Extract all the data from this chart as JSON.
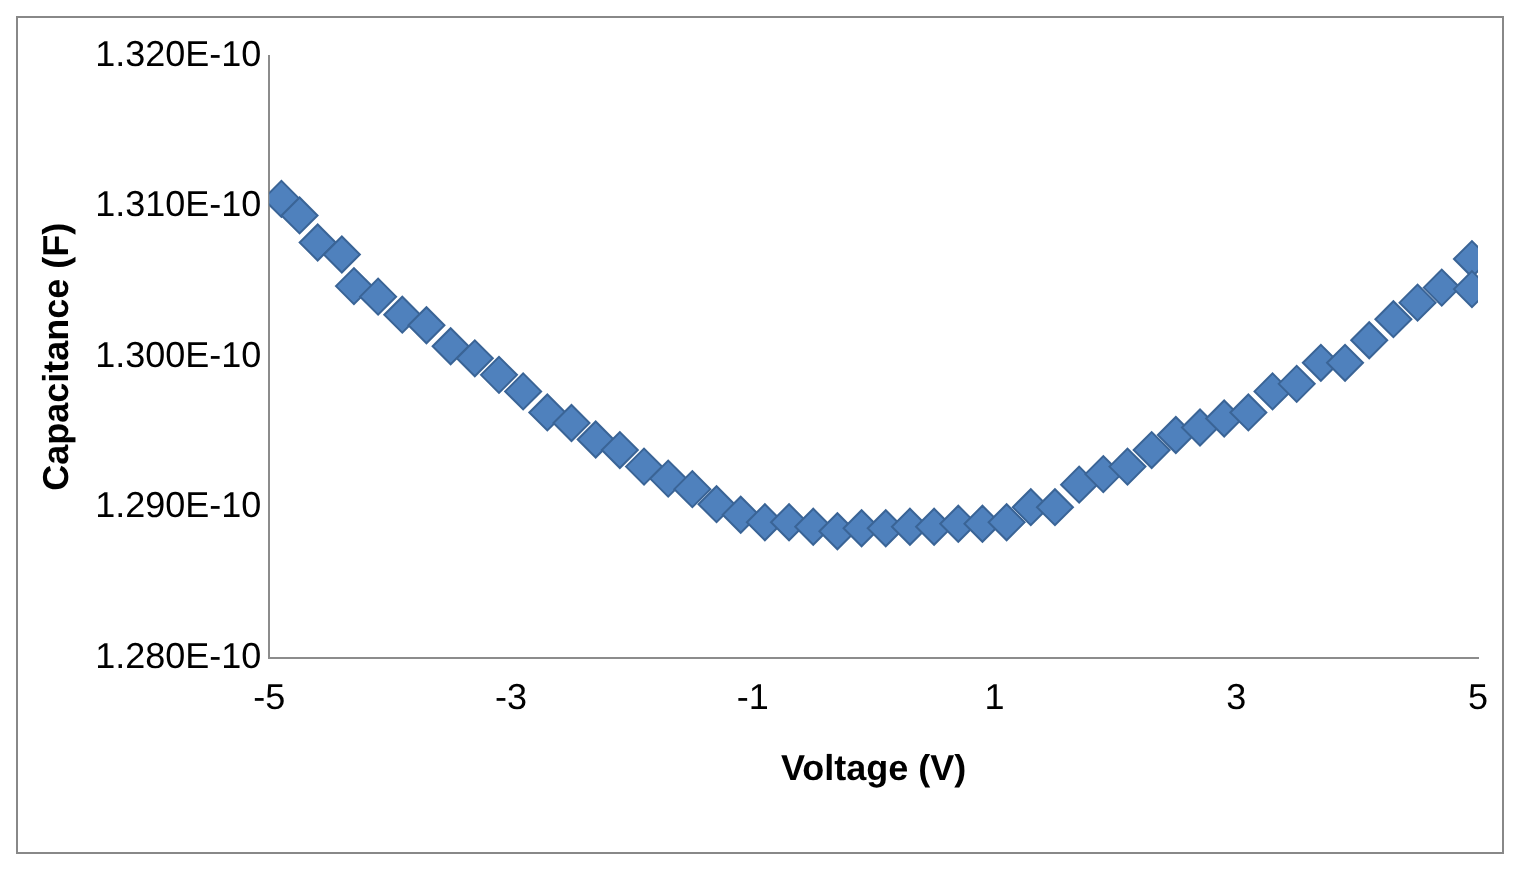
{
  "chart_data": {
    "type": "scatter",
    "xlabel": "Voltage (V)",
    "ylabel": "Capacitance (F)",
    "marker": "diamond",
    "grid": false,
    "xlim": [
      -5,
      5
    ],
    "xticks": [
      -5,
      -3,
      -1,
      1,
      3,
      5
    ],
    "ylim": [
      1.28e-10,
      1.32e-10
    ],
    "yticks": [
      {
        "value": 1.28e-10,
        "label": "1.280E-10"
      },
      {
        "value": 1.29e-10,
        "label": "1.290E-10"
      },
      {
        "value": 1.3e-10,
        "label": "1.300E-10"
      },
      {
        "value": 1.31e-10,
        "label": "1.310E-10"
      },
      {
        "value": 1.32e-10,
        "label": "1.320E-10"
      }
    ],
    "series": [
      {
        "color": "#4f81bd",
        "x": [
          -4.9,
          -4.75,
          -4.6,
          -4.4,
          -4.3,
          -4.1,
          -3.9,
          -3.7,
          -3.5,
          -3.3,
          -3.1,
          -2.9,
          -2.7,
          -2.5,
          -2.3,
          -2.1,
          -1.9,
          -1.7,
          -1.5,
          -1.3,
          -1.1,
          -0.9,
          -0.7,
          -0.5,
          -0.3,
          -0.1,
          0.1,
          0.3,
          0.5,
          0.7,
          0.9,
          1.1,
          1.3,
          1.5,
          1.7,
          1.9,
          2.1,
          2.3,
          2.5,
          2.7,
          2.9,
          3.1,
          3.3,
          3.5,
          3.7,
          3.9,
          4.1,
          4.3,
          4.5,
          4.7,
          4.95,
          4.95
        ],
        "values": [
          1.3105e-10,
          1.3094e-10,
          1.3076e-10,
          1.3068e-10,
          1.3047e-10,
          1.304e-10,
          1.3028e-10,
          1.3021e-10,
          1.3007e-10,
          1.2999e-10,
          1.2988e-10,
          1.2977e-10,
          1.2963e-10,
          1.2956e-10,
          1.2945e-10,
          1.2938e-10,
          1.2927e-10,
          1.2919e-10,
          1.2912e-10,
          1.2902e-10,
          1.2895e-10,
          1.289e-10,
          1.289e-10,
          1.2887e-10,
          1.2884e-10,
          1.2886e-10,
          1.2886e-10,
          1.2887e-10,
          1.2887e-10,
          1.2889e-10,
          1.2889e-10,
          1.289e-10,
          1.29e-10,
          1.29e-10,
          1.2915e-10,
          1.2922e-10,
          1.2927e-10,
          1.2938e-10,
          1.2948e-10,
          1.2953e-10,
          1.2959e-10,
          1.2963e-10,
          1.2977e-10,
          1.2982e-10,
          1.2996e-10,
          1.2996e-10,
          1.3011e-10,
          1.3025e-10,
          1.3036e-10,
          1.3046e-10,
          1.3065e-10,
          1.3045e-10
        ]
      }
    ]
  }
}
